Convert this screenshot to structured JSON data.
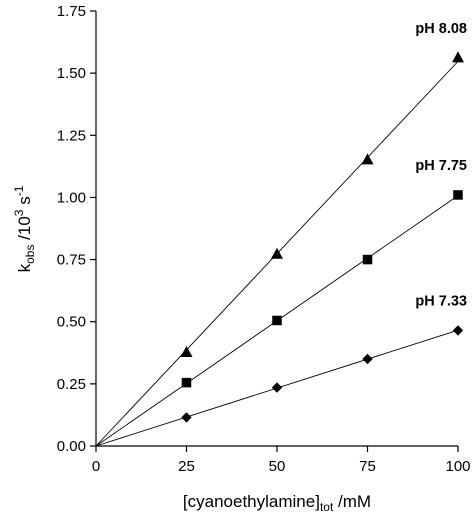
{
  "chart_data": {
    "type": "scatter",
    "title": "",
    "xlabel": "[cyanoethylamine]",
    "xlabel_subscript": "tot",
    "xlabel_suffix": " /mM",
    "ylabel": "k",
    "ylabel_subscript": "obs",
    "ylabel_middle": " /10",
    "ylabel_superscript": "3",
    "ylabel_unit": " s",
    "ylabel_unit_superscript": "-1",
    "xlim": [
      0,
      100
    ],
    "ylim": [
      0,
      1.75
    ],
    "x_ticks": [
      0,
      25,
      50,
      75,
      100
    ],
    "x_tick_labels": [
      "0",
      "25",
      "50",
      "75",
      "100"
    ],
    "y_ticks": [
      0,
      0.25,
      0.5,
      0.75,
      1.0,
      1.25,
      1.5,
      1.75
    ],
    "y_tick_labels": [
      "0.00",
      "0.25",
      "0.50",
      "0.75",
      "1.00",
      "1.25",
      "1.50",
      "1.75"
    ],
    "grid": false,
    "fit_lines_through_origin": true,
    "series": [
      {
        "name": "pH 8.08",
        "marker": "triangle",
        "x": [
          25,
          50,
          75,
          100
        ],
        "y": [
          0.375,
          0.77,
          1.15,
          1.56
        ]
      },
      {
        "name": "pH 7.75",
        "marker": "square",
        "x": [
          25,
          50,
          75,
          100
        ],
        "y": [
          0.255,
          0.505,
          0.75,
          1.01
        ]
      },
      {
        "name": "pH 7.33",
        "marker": "diamond",
        "x": [
          25,
          50,
          75,
          100
        ],
        "y": [
          0.115,
          0.235,
          0.35,
          0.465
        ]
      }
    ]
  }
}
